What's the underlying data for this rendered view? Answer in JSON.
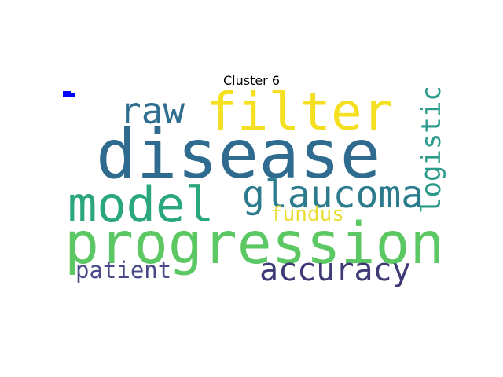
{
  "title": "Cluster 6",
  "words": {
    "disease": {
      "text": "disease",
      "color": "#2f6b8e"
    },
    "progression": {
      "text": "progression",
      "color": "#5cc863"
    },
    "model": {
      "text": "model",
      "color": "#2aa77e"
    },
    "filter": {
      "text": "filter",
      "color": "#f4e021"
    },
    "glaucoma": {
      "text": "glaucoma",
      "color": "#2c7b8d"
    },
    "accuracy": {
      "text": "accuracy",
      "color": "#3e3a76"
    },
    "raw": {
      "text": "raw",
      "color": "#2f6e8e"
    },
    "logistic": {
      "text": "logistic",
      "color": "#2a9b8a"
    },
    "patient": {
      "text": "patient",
      "color": "#4a4a8a"
    },
    "fundus": {
      "text": "fundus",
      "color": "#e8de32"
    }
  }
}
